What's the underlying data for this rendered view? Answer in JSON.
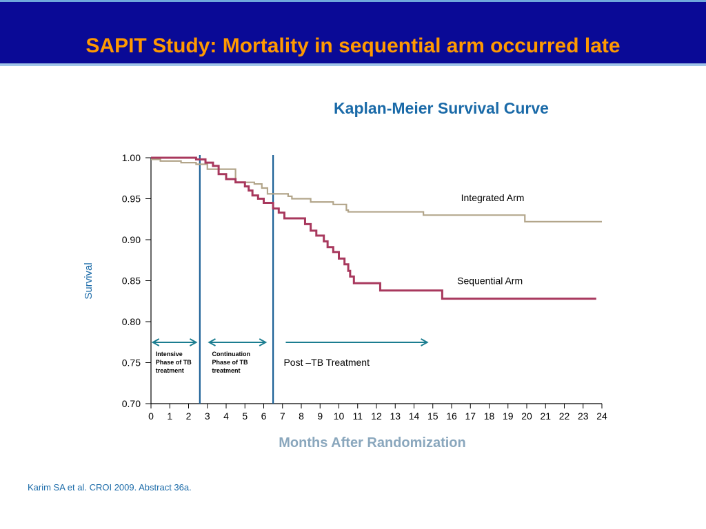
{
  "slide": {
    "title": "SAPIT Study: Mortality in sequential arm occurred late",
    "citation": "Karim SA et al. CROI 2009. Abstract 36a.",
    "header_color": "#0a0a96",
    "title_color": "#ff9900"
  },
  "chart_data": {
    "type": "line",
    "title": "Kaplan-Meier Survival Curve",
    "xlabel": "Months After Randomization",
    "ylabel": "Survival",
    "xlim": [
      0,
      24
    ],
    "ylim": [
      0.7,
      1.0
    ],
    "x_ticks": [
      0,
      1,
      2,
      3,
      4,
      5,
      6,
      7,
      8,
      9,
      10,
      11,
      12,
      13,
      14,
      15,
      16,
      17,
      18,
      19,
      20,
      21,
      22,
      23,
      24
    ],
    "y_ticks": [
      "0.70",
      "0.75",
      "0.80",
      "0.85",
      "0.90",
      "0.95",
      "1.00"
    ],
    "grid": false,
    "series": [
      {
        "name": "Integrated Arm",
        "color": "#b2a58a",
        "step": true,
        "points": [
          [
            0,
            0.998
          ],
          [
            0.5,
            0.996
          ],
          [
            1.6,
            0.994
          ],
          [
            2.4,
            0.992
          ],
          [
            3.0,
            0.986
          ],
          [
            4.5,
            0.97
          ],
          [
            5.5,
            0.968
          ],
          [
            5.9,
            0.963
          ],
          [
            6.2,
            0.956
          ],
          [
            7.3,
            0.953
          ],
          [
            7.5,
            0.95
          ],
          [
            8.5,
            0.946
          ],
          [
            9.7,
            0.943
          ],
          [
            10.4,
            0.936
          ],
          [
            10.5,
            0.934
          ],
          [
            14.5,
            0.93
          ],
          [
            19.9,
            0.922
          ],
          [
            24,
            0.922
          ]
        ]
      },
      {
        "name": "Sequential Arm",
        "color": "#a8385d",
        "step": true,
        "points": [
          [
            0,
            1.0
          ],
          [
            2.4,
            0.998
          ],
          [
            2.9,
            0.994
          ],
          [
            3.3,
            0.99
          ],
          [
            3.6,
            0.98
          ],
          [
            4.0,
            0.974
          ],
          [
            4.5,
            0.97
          ],
          [
            5.0,
            0.965
          ],
          [
            5.2,
            0.96
          ],
          [
            5.4,
            0.954
          ],
          [
            5.7,
            0.95
          ],
          [
            6.0,
            0.945
          ],
          [
            6.5,
            0.938
          ],
          [
            6.8,
            0.933
          ],
          [
            7.1,
            0.926
          ],
          [
            8.2,
            0.919
          ],
          [
            8.5,
            0.911
          ],
          [
            8.8,
            0.905
          ],
          [
            9.2,
            0.898
          ],
          [
            9.4,
            0.891
          ],
          [
            9.7,
            0.885
          ],
          [
            10.0,
            0.877
          ],
          [
            10.3,
            0.87
          ],
          [
            10.5,
            0.862
          ],
          [
            10.6,
            0.855
          ],
          [
            10.8,
            0.847
          ],
          [
            12.2,
            0.838
          ],
          [
            15.5,
            0.828
          ],
          [
            23.7,
            0.828
          ]
        ]
      }
    ],
    "vertical_lines": [
      {
        "x": 2.6,
        "color": "#1a5f96"
      },
      {
        "x": 6.5,
        "color": "#1a5f96"
      }
    ],
    "annotations": [
      {
        "text": "Intensive\nPhase of TB\ntreatment",
        "x_from": 0.1,
        "x_to": 2.4
      },
      {
        "text": "Continuation\nPhase of TB\ntreatment",
        "x_from": 3.1,
        "x_to": 6.1
      },
      {
        "text": "Post –TB Treatment",
        "x_from": 7.1,
        "x_to": 14.7
      }
    ]
  }
}
